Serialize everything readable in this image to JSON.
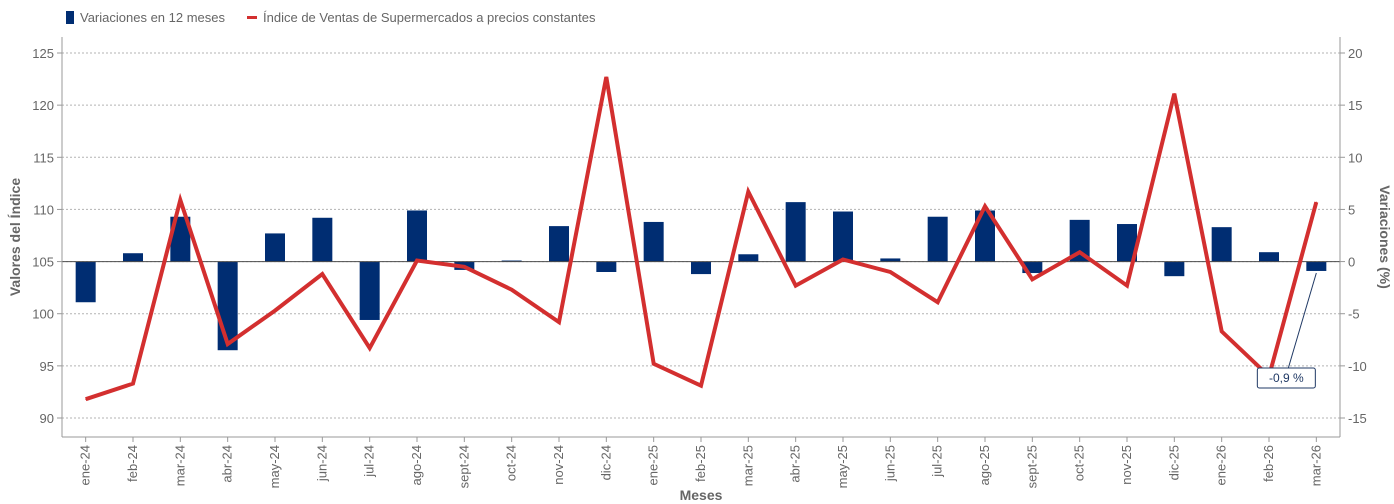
{
  "legend": {
    "bars_label": "Variaciones en 12 meses",
    "line_label": "Índice de Ventas de Supermercados a precios constantes"
  },
  "chart_data": {
    "type": "bar+line",
    "xlabel": "Meses",
    "ylabel_left": "Valores del Índice",
    "ylabel_right": "Variaciones (%)",
    "categories": [
      "ene-24",
      "feb-24",
      "mar-24",
      "abr-24",
      "may-24",
      "jun-24",
      "jul-24",
      "ago-24",
      "sept-24",
      "oct-24",
      "nov-24",
      "dic-24",
      "ene-25",
      "feb-25",
      "mar-25",
      "abr-25",
      "may-25",
      "jun-25",
      "jul-25",
      "ago-25",
      "sept-25",
      "oct-25",
      "nov-25",
      "dic-25",
      "ene-26",
      "feb-26",
      "mar-26"
    ],
    "left_axis": {
      "min": 90,
      "max": 125,
      "ticks": [
        90,
        95,
        100,
        105,
        110,
        115,
        120,
        125
      ]
    },
    "right_axis": {
      "min": -15,
      "max": 20,
      "ticks": [
        -15,
        -10,
        -5,
        0,
        5,
        10,
        15,
        20
      ]
    },
    "bar_series": {
      "name": "Variaciones en 12 meses",
      "axis": "right",
      "color": "#002d72",
      "values": [
        -3.9,
        0.8,
        4.3,
        -8.5,
        2.7,
        4.2,
        -5.6,
        4.9,
        -0.8,
        0.1,
        3.4,
        -1.0,
        3.8,
        -1.2,
        0.7,
        5.7,
        4.8,
        0.3,
        4.3,
        4.9,
        -1.1,
        4.0,
        3.6,
        -1.4,
        3.3,
        0.9,
        -0.9
      ]
    },
    "line_series": {
      "name": "Índice de Ventas de Supermercados a precios constantes",
      "axis": "left",
      "color": "#d32f2f",
      "values": [
        91.8,
        93.3,
        110.9,
        97.1,
        100.3,
        103.8,
        96.7,
        105.1,
        104.5,
        102.3,
        99.2,
        122.7,
        95.2,
        93.1,
        111.7,
        102.7,
        105.2,
        104.0,
        101.1,
        110.3,
        103.3,
        105.9,
        102.7,
        121.1,
        98.3,
        94.0,
        110.7
      ]
    },
    "annotation": {
      "category": "mar-26",
      "label": "-0,9 %"
    },
    "grid": true,
    "legend_position": "top-left"
  }
}
